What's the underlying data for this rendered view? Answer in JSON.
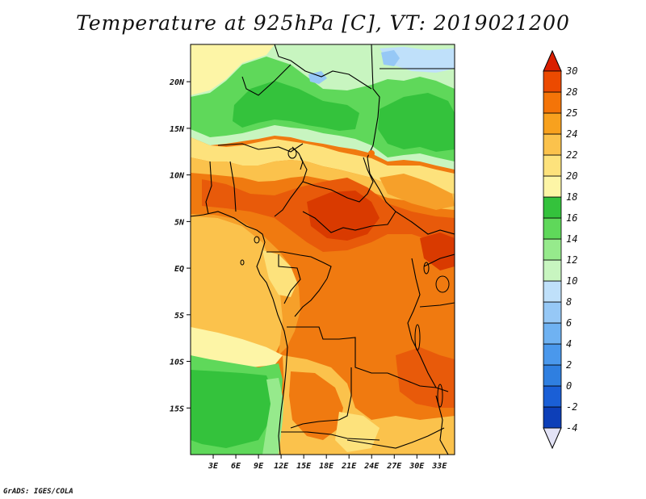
{
  "title": "Temperature at 925hPa [C], VT: 2019021200",
  "credit": "GrADS: IGES/COLA",
  "map": {
    "lon_range": [
      0,
      35
    ],
    "lat_range": [
      -20,
      24
    ],
    "lon_ticks": [
      {
        "value": 3,
        "label": "3E"
      },
      {
        "value": 6,
        "label": "6E"
      },
      {
        "value": 9,
        "label": "9E"
      },
      {
        "value": 12,
        "label": "12E"
      },
      {
        "value": 15,
        "label": "15E"
      },
      {
        "value": 18,
        "label": "18E"
      },
      {
        "value": 21,
        "label": "21E"
      },
      {
        "value": 24,
        "label": "24E"
      },
      {
        "value": 27,
        "label": "27E"
      },
      {
        "value": 30,
        "label": "30E"
      },
      {
        "value": 33,
        "label": "33E"
      }
    ],
    "lat_ticks": [
      {
        "value": 20,
        "label": "20N"
      },
      {
        "value": 15,
        "label": "15N"
      },
      {
        "value": 10,
        "label": "10N"
      },
      {
        "value": 5,
        "label": "5N"
      },
      {
        "value": 0,
        "label": "EQ"
      },
      {
        "value": -5,
        "label": "5S"
      },
      {
        "value": -10,
        "label": "10S"
      },
      {
        "value": -15,
        "label": "15S"
      }
    ]
  },
  "colorbar": {
    "levels": [
      "-4",
      "-2",
      "0",
      "2",
      "4",
      "6",
      "8",
      "10",
      "12",
      "14",
      "16",
      "18",
      "20",
      "22",
      "24",
      "25",
      "28",
      "30"
    ],
    "colors": [
      "#0a0a6e",
      "#0d3fb8",
      "#1a5fd6",
      "#2f7fe0",
      "#4a98ec",
      "#6fb2f2",
      "#96c8f6",
      "#bfe0fa",
      "#c8f5c0",
      "#96ea8c",
      "#5fd85a",
      "#34c23c",
      "#fdf5a6",
      "#fde27c",
      "#fbc24c",
      "#f8a11e",
      "#f47408",
      "#ec4a00",
      "#d91e00"
    ],
    "under_color": "#e3e3f6",
    "over_color": "#d91e00"
  },
  "palette": {
    "red_deep": "#d93a00",
    "red": "#e85a0a",
    "orange": "#f07a10",
    "orange_light": "#f6a02a",
    "yellow_orange": "#fbc24c",
    "yellow": "#fde27c",
    "pale_yellow": "#fdf5a6",
    "green_dark": "#34c23c",
    "green": "#5fd85a",
    "green_light": "#96ea8c",
    "green_pale": "#c8f5c0",
    "blue_pale": "#bfe0fa",
    "blue_light": "#96c8f6"
  }
}
